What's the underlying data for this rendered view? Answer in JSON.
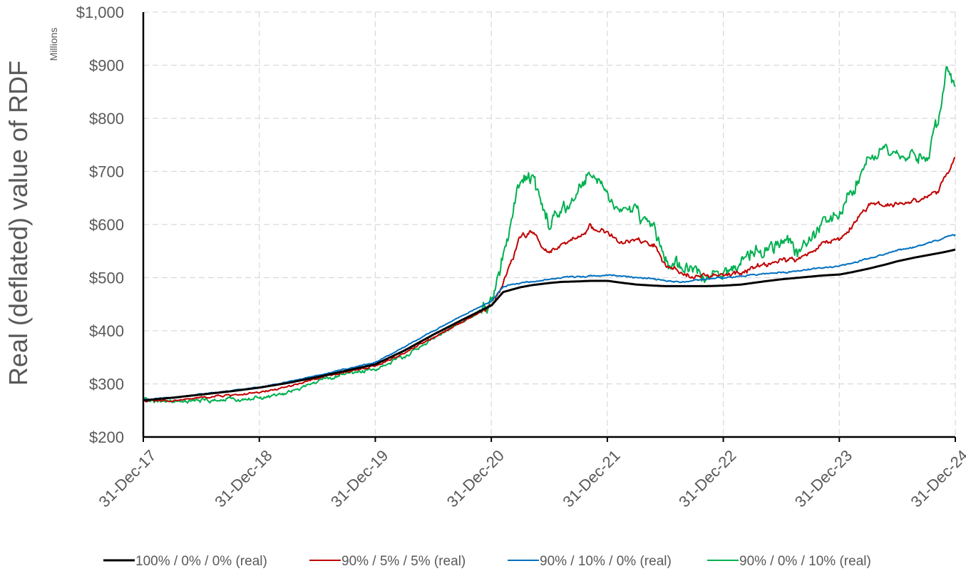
{
  "chart_data": {
    "type": "line",
    "title": "",
    "ylabel": "Real (deflated) value of RDF",
    "y_units": "Millions",
    "ylim": [
      200,
      1000
    ],
    "y_ticks": [
      200,
      300,
      400,
      500,
      600,
      700,
      800,
      900,
      1000
    ],
    "y_tick_labels": [
      "$200",
      "$300",
      "$400",
      "$500",
      "$600",
      "$700",
      "$800",
      "$900",
      "$1,000"
    ],
    "x_tick_labels": [
      "31-Dec-17",
      "31-Dec-18",
      "31-Dec-19",
      "31-Dec-20",
      "31-Dec-21",
      "31-Dec-22",
      "31-Dec-23",
      "31-Dec-24"
    ],
    "xlim": [
      2017.997,
      2024.997
    ],
    "grid": true,
    "legend_position": "bottom",
    "x": [
      2018.0,
      2018.25,
      2018.5,
      2018.75,
      2019.0,
      2019.25,
      2019.5,
      2019.75,
      2020.0,
      2020.25,
      2020.5,
      2020.75,
      2021.0,
      2021.1,
      2021.25,
      2021.35,
      2021.5,
      2021.6,
      2021.75,
      2021.85,
      2022.0,
      2022.1,
      2022.25,
      2022.4,
      2022.5,
      2022.6,
      2022.75,
      2022.85,
      2023.0,
      2023.15,
      2023.25,
      2023.35,
      2023.5,
      2023.65,
      2023.75,
      2023.85,
      2024.0,
      2024.1,
      2024.25,
      2024.4,
      2024.5,
      2024.65,
      2024.75,
      2024.85,
      2024.92,
      2025.0
    ],
    "series": [
      {
        "name": "100% / 0% / 0% (real)",
        "color": "#000000",
        "width": 3,
        "values": [
          269,
          274,
          280,
          286,
          293,
          302,
          313,
          325,
          337,
          363,
          393,
          421,
          448,
          473,
          482,
          486,
          490,
          492,
          493,
          494,
          494,
          491,
          487,
          485,
          484,
          484,
          484,
          484,
          485,
          487,
          490,
          493,
          497,
          500,
          502,
          504,
          506,
          510,
          517,
          525,
          531,
          538,
          542,
          546,
          549,
          553
        ]
      },
      {
        "name": "90% / 5% / 5% (real)",
        "color": "#C00000",
        "width": 2,
        "values": [
          268,
          268,
          274,
          279,
          283,
          295,
          310,
          323,
          334,
          358,
          388,
          418,
          446,
          490,
          578,
          585,
          545,
          560,
          575,
          597,
          585,
          565,
          570,
          561,
          520,
          510,
          505,
          502,
          504,
          508,
          518,
          525,
          532,
          536,
          546,
          565,
          573,
          595,
          638,
          640,
          638,
          645,
          652,
          665,
          690,
          725
        ]
      },
      {
        "name": "90% / 10% / 0% (real)",
        "color": "#0070C0",
        "width": 2,
        "values": [
          270,
          274,
          281,
          287,
          294,
          304,
          316,
          328,
          341,
          370,
          400,
          429,
          455,
          483,
          490,
          493,
          497,
          500,
          502,
          503,
          505,
          504,
          500,
          497,
          494,
          492,
          494,
          497,
          500,
          502,
          505,
          507,
          510,
          513,
          516,
          519,
          522,
          527,
          535,
          545,
          552,
          558,
          565,
          571,
          576,
          581
        ]
      },
      {
        "name": "90% / 0% / 10% (real)",
        "color": "#00B050",
        "width": 2,
        "values": [
          270,
          265,
          268,
          270,
          273,
          283,
          305,
          320,
          328,
          352,
          385,
          417,
          450,
          545,
          680,
          690,
          595,
          620,
          660,
          700,
          662,
          625,
          628,
          590,
          525,
          520,
          513,
          508,
          512,
          520,
          545,
          555,
          565,
          555,
          575,
          595,
          625,
          665,
          725,
          735,
          720,
          730,
          725,
          795,
          900,
          860
        ]
      }
    ]
  }
}
